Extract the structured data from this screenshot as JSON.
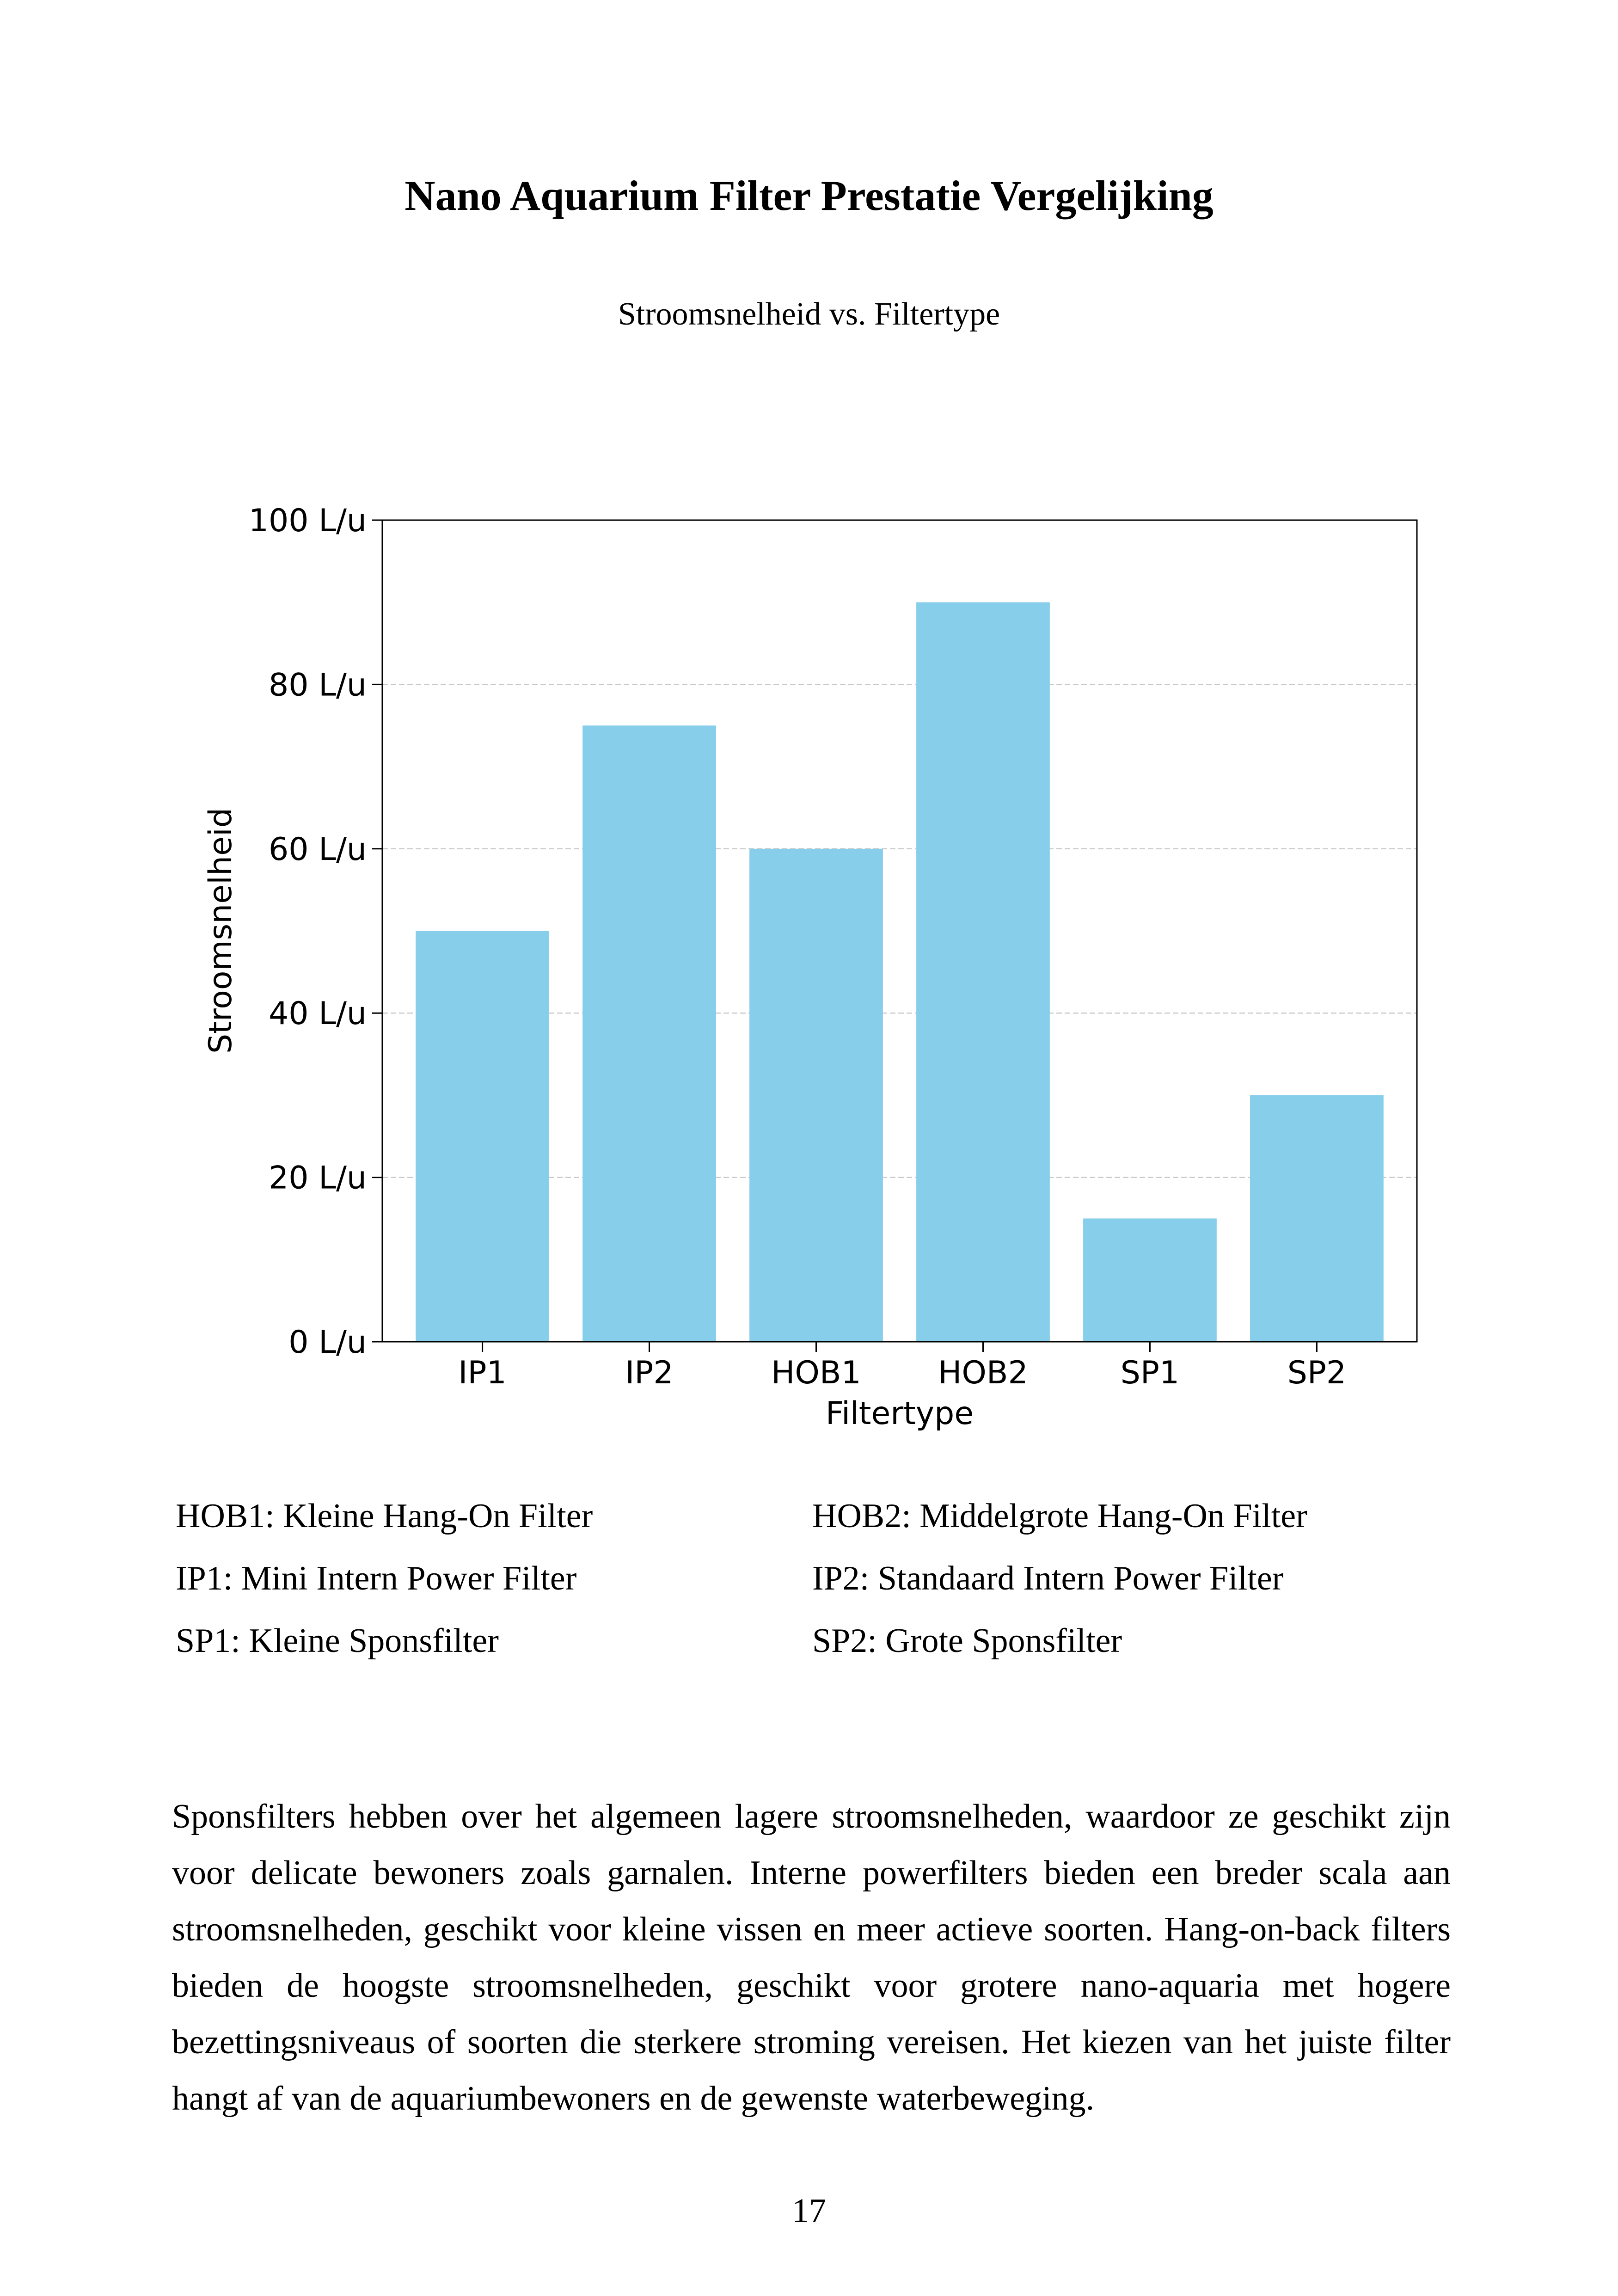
{
  "document": {
    "title": "Nano Aquarium Filter Prestatie Vergelijking",
    "subtitle": "Stroomsnelheid vs. Filtertype",
    "page_number": "17"
  },
  "legend": {
    "hob1": "HOB1: Kleine Hang-On Filter",
    "hob2": "HOB2: Middelgrote Hang-On Filter",
    "ip1": "IP1: Mini Intern Power Filter",
    "ip2": "IP2: Standaard Intern Power Filter",
    "sp1": "SP1: Kleine Sponsfilter",
    "sp2": "SP2: Grote Sponsfilter"
  },
  "body": {
    "paragraph": "Sponsfilters hebben over het algemeen lagere stroomsnelheden, waardoor ze geschikt zijn voor delicate bewoners zoals garnalen. Interne powerfilters bieden een breder scala aan stroomsnelheden, geschikt voor kleine vissen en meer actieve soorten. Hang-on-back filters bieden de hoogste stroomsnelheden, geschikt voor grotere nano-aquaria met hogere bezettingsniveaus of soorten die sterkere stroming vereisen. Het kiezen van het juiste filter hangt af van de aquariumbewoners en de gewenste waterbeweging."
  },
  "chart_data": {
    "type": "bar",
    "categories": [
      "IP1",
      "IP2",
      "HOB1",
      "HOB2",
      "SP1",
      "SP2"
    ],
    "values": [
      50,
      75,
      60,
      90,
      15,
      30
    ],
    "xlabel": "Filtertype",
    "ylabel": "Stroomsnelheid",
    "ylim": [
      0,
      100
    ],
    "yticks": [
      0,
      20,
      40,
      60,
      80,
      100
    ],
    "ytick_labels": [
      "0 L/u",
      "20 L/u",
      "40 L/u",
      "60 L/u",
      "80 L/u",
      "100 L/u"
    ],
    "grid": "y-dashed",
    "bar_color": "#87CEEB",
    "grid_color": "#c8c8c8"
  }
}
